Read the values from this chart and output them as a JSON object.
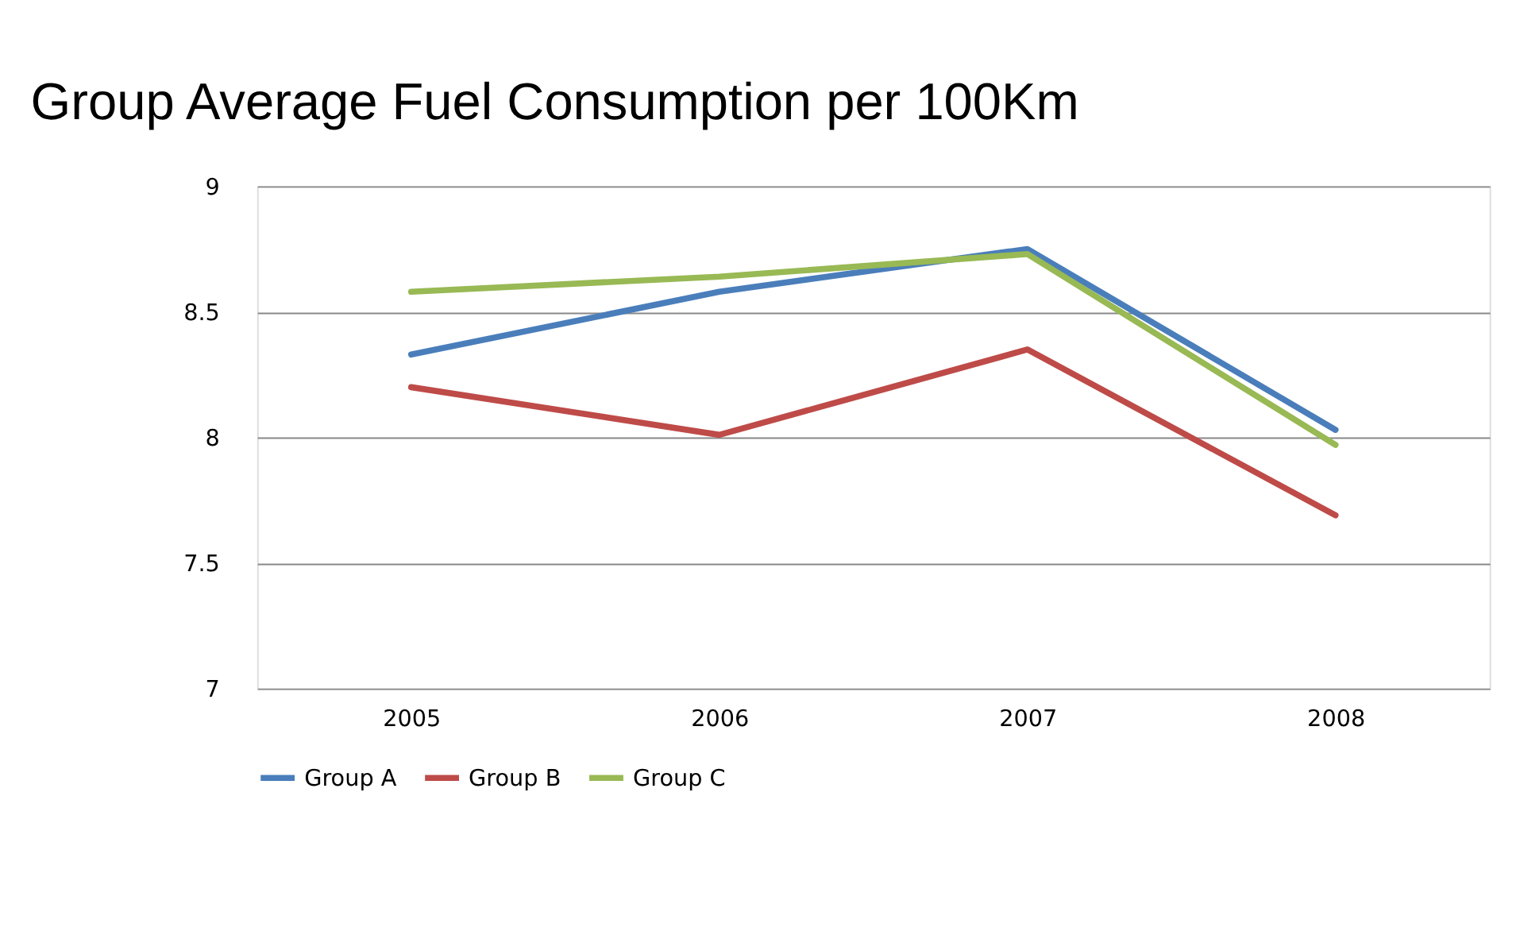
{
  "chart_data": {
    "type": "line",
    "title": "Group Average Fuel Consumption per 100Km",
    "categories": [
      "2005",
      "2006",
      "2007",
      "2008"
    ],
    "series": [
      {
        "name": "Group A",
        "color": "#4a7ebb",
        "values": [
          8.33,
          8.58,
          8.75,
          8.03
        ]
      },
      {
        "name": "Group B",
        "color": "#be4b48",
        "values": [
          8.2,
          8.01,
          8.35,
          7.69
        ]
      },
      {
        "name": "Group C",
        "color": "#98b954",
        "values": [
          8.58,
          8.64,
          8.73,
          7.97
        ]
      }
    ],
    "ylim": [
      7,
      9
    ],
    "yticks": [
      7,
      7.5,
      8,
      8.5,
      9
    ],
    "grid": "y",
    "legend": "bottom",
    "marker": "none",
    "line_style": "solid"
  }
}
